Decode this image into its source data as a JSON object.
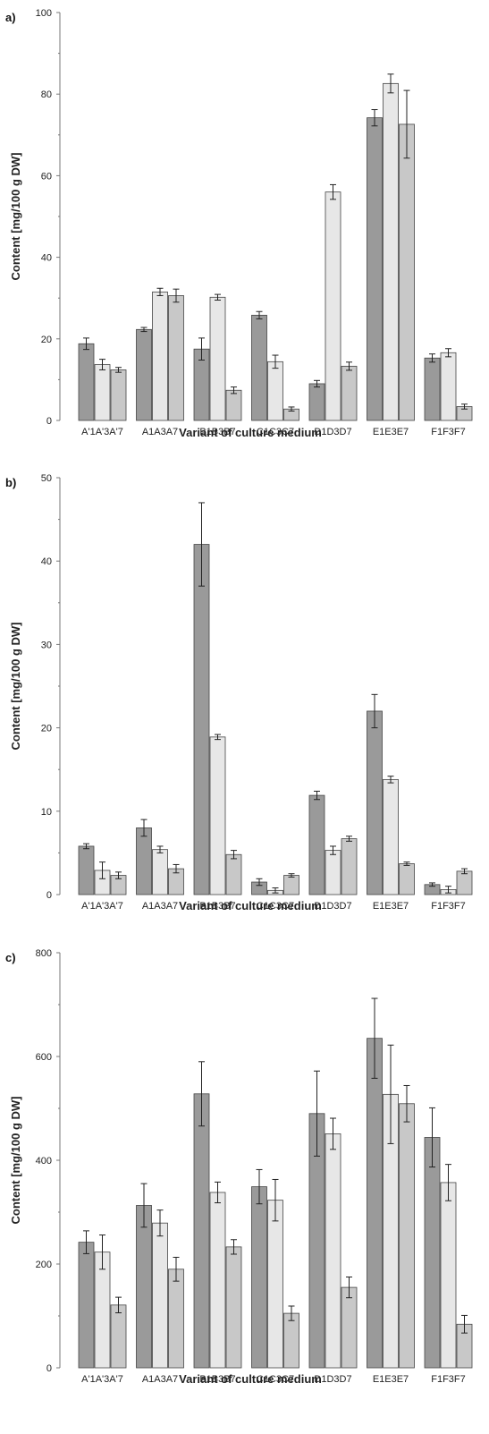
{
  "colors": {
    "series_1": "#9a9a9a",
    "series_2": "#e7e7e7",
    "series_3": "#c8c8c8"
  },
  "chart_data": [
    {
      "type": "bar",
      "panel_label": "a)",
      "xlabel": "Variant of culture medium",
      "ylabel": "Content [mg/100 g DW]",
      "ylim": [
        0,
        100
      ],
      "yticks": [
        0,
        20,
        40,
        60,
        80,
        100
      ],
      "categories": [
        "A'1A'3A'7",
        "A1A3A7",
        "B1B3B7",
        "C1C3C7",
        "D1D3D7",
        "E1E3E7",
        "F1F3F7"
      ],
      "series": [
        {
          "values": [
            18.8,
            22.3,
            17.5,
            25.8,
            9.0,
            74.2,
            15.3
          ],
          "errors": [
            1.4,
            0.5,
            2.7,
            0.9,
            0.8,
            2.0,
            1.0
          ]
        },
        {
          "values": [
            13.7,
            31.5,
            30.2,
            14.4,
            56.0,
            82.6,
            16.6
          ],
          "errors": [
            1.3,
            0.9,
            0.7,
            1.6,
            1.8,
            2.3,
            1.0
          ]
        },
        {
          "values": [
            12.4,
            30.6,
            7.4,
            2.8,
            13.3,
            72.6,
            3.4
          ],
          "errors": [
            0.6,
            1.6,
            0.8,
            0.5,
            1.0,
            8.3,
            0.6
          ]
        }
      ]
    },
    {
      "type": "bar",
      "panel_label": "b)",
      "xlabel": "Variant of culture medium",
      "ylabel": "Content [mg/100 g DW]",
      "ylim": [
        0,
        50
      ],
      "yticks": [
        0,
        10,
        20,
        30,
        40,
        50
      ],
      "categories": [
        "A'1A'3A'7",
        "A1A3A7",
        "B1B3B7",
        "C1C3C7",
        "D1D3D7",
        "E1E3E7",
        "F1F3F7"
      ],
      "series": [
        {
          "values": [
            5.8,
            8.0,
            42.0,
            1.5,
            11.9,
            22.0,
            1.2
          ],
          "errors": [
            0.3,
            1.0,
            5.0,
            0.4,
            0.5,
            2.0,
            0.2
          ]
        },
        {
          "values": [
            2.9,
            5.4,
            18.9,
            0.5,
            5.3,
            13.8,
            0.6
          ],
          "errors": [
            1.0,
            0.4,
            0.3,
            0.3,
            0.5,
            0.4,
            0.4
          ]
        },
        {
          "values": [
            2.3,
            3.1,
            4.8,
            2.3,
            6.7,
            3.7,
            2.8
          ],
          "errors": [
            0.4,
            0.5,
            0.5,
            0.2,
            0.3,
            0.2,
            0.3
          ]
        }
      ]
    },
    {
      "type": "bar",
      "panel_label": "c)",
      "xlabel": "Variant of culture medium",
      "ylabel": "Content [mg/100 g DW]",
      "ylim": [
        0,
        800
      ],
      "yticks": [
        0,
        200,
        400,
        600,
        800
      ],
      "categories": [
        "A'1A'3A'7",
        "A1A3A7",
        "B1B3B7",
        "C1C3C7",
        "D1D3D7",
        "E1E3E7",
        "F1F3F7"
      ],
      "series": [
        {
          "values": [
            242,
            313,
            528,
            349,
            490,
            635,
            444
          ],
          "errors": [
            22,
            42,
            62,
            33,
            82,
            77,
            57
          ]
        },
        {
          "values": [
            223,
            279,
            338,
            323,
            451,
            527,
            357
          ],
          "errors": [
            33,
            25,
            20,
            40,
            30,
            95,
            35
          ]
        },
        {
          "values": [
            121,
            190,
            233,
            105,
            155,
            509,
            84
          ],
          "errors": [
            15,
            23,
            14,
            14,
            20,
            35,
            17
          ]
        }
      ]
    }
  ]
}
